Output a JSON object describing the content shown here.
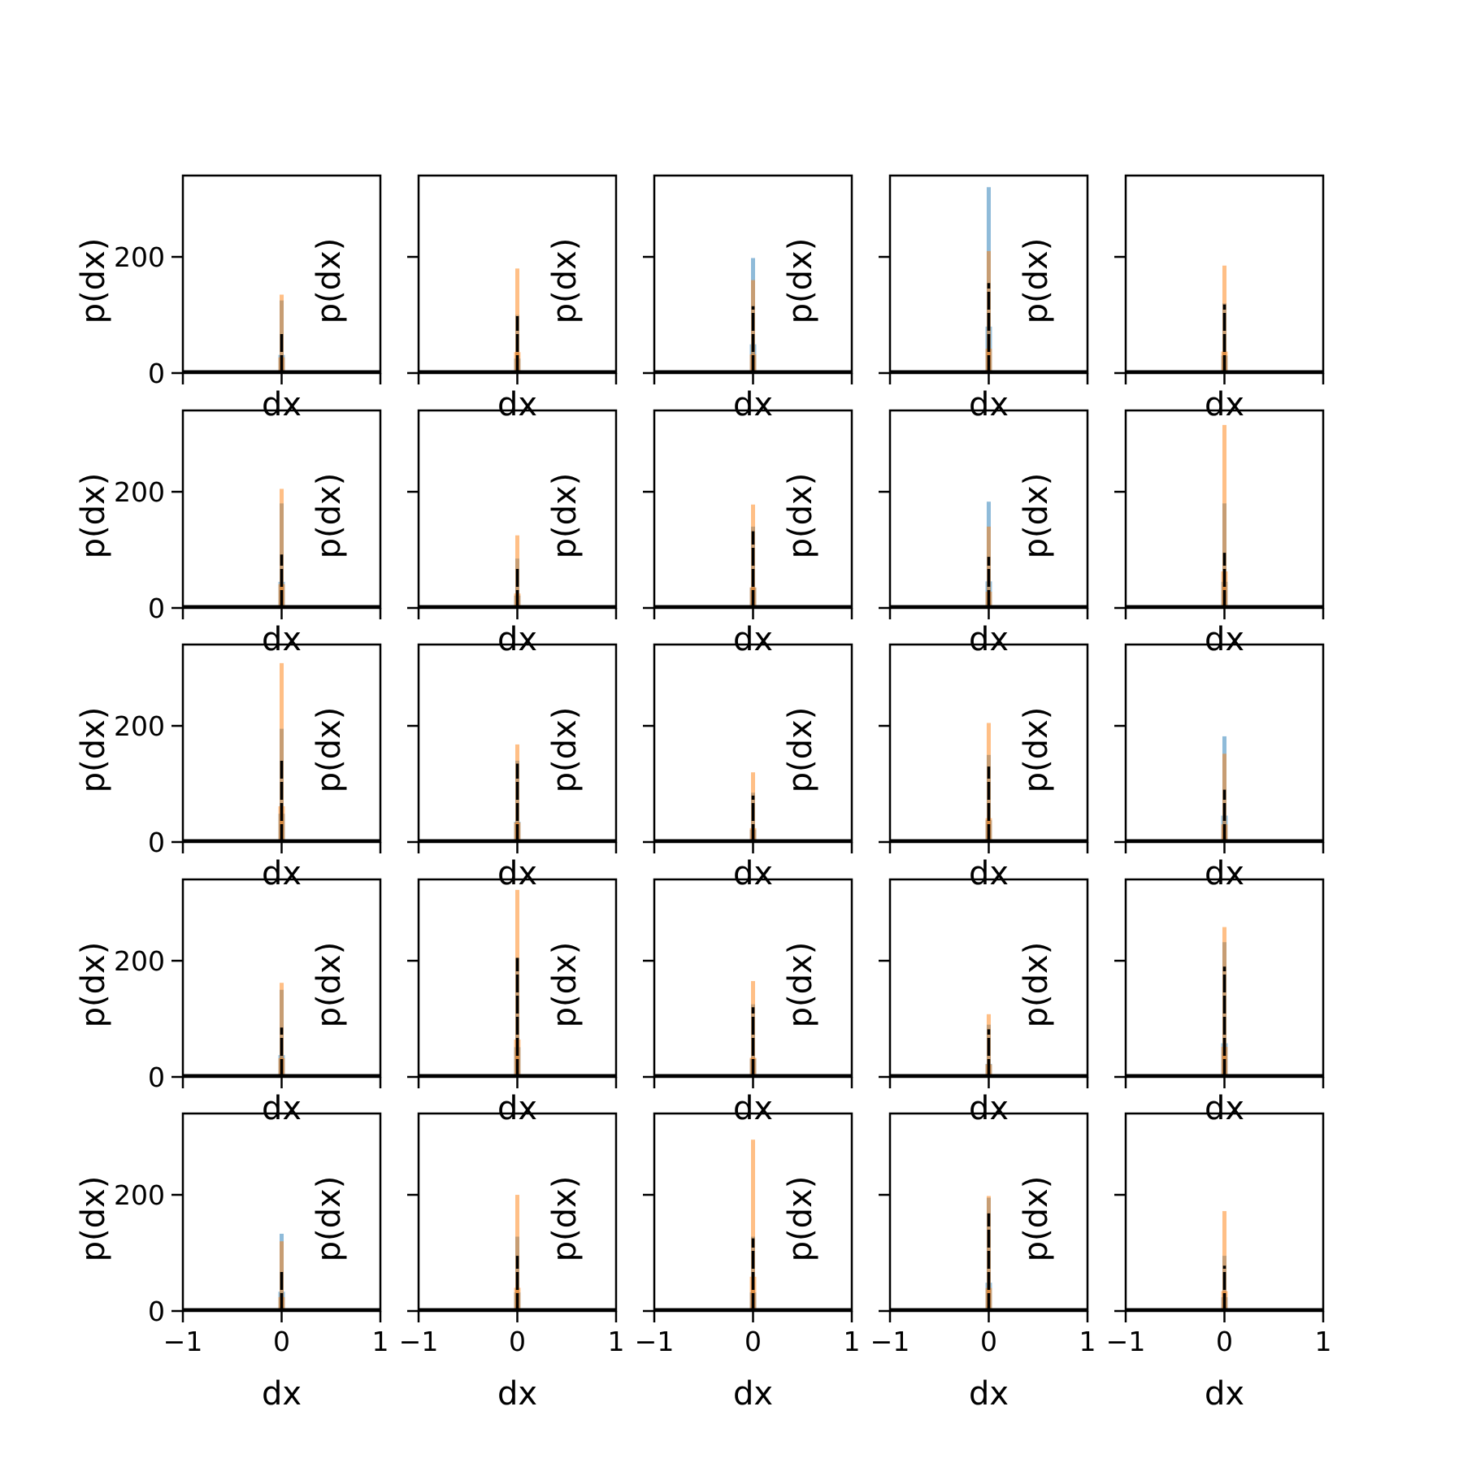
{
  "figure": {
    "rows": 5,
    "cols": 5,
    "xlabel": "dx",
    "ylabel": "p(dx)",
    "xlim": [
      -1,
      1
    ],
    "ylim": [
      0,
      340
    ],
    "xticks": [
      -1,
      0,
      1
    ],
    "xtick_labels": [
      "−1",
      "0",
      "1"
    ],
    "yticks": [
      0,
      200
    ],
    "ytick_labels": [
      "0",
      "200"
    ],
    "colors": {
      "series_a": "#1f77b4",
      "series_b": "#ff7f0e",
      "line": "#000000",
      "axes": "#000000"
    }
  },
  "chart_data": [
    {
      "type": "bar",
      "row": 0,
      "col": 0,
      "blue_peak": 125,
      "orange_peak": 135,
      "black_peak": 70
    },
    {
      "type": "bar",
      "row": 0,
      "col": 1,
      "blue_peak": 100,
      "orange_peak": 180,
      "black_peak": 98
    },
    {
      "type": "bar",
      "row": 0,
      "col": 2,
      "blue_peak": 198,
      "orange_peak": 160,
      "black_peak": 115
    },
    {
      "type": "bar",
      "row": 0,
      "col": 3,
      "blue_peak": 320,
      "orange_peak": 210,
      "black_peak": 155
    },
    {
      "type": "bar",
      "row": 0,
      "col": 4,
      "blue_peak": 120,
      "orange_peak": 185,
      "black_peak": 118
    },
    {
      "type": "bar",
      "row": 1,
      "col": 0,
      "blue_peak": 180,
      "orange_peak": 205,
      "black_peak": 92
    },
    {
      "type": "bar",
      "row": 1,
      "col": 1,
      "blue_peak": 85,
      "orange_peak": 125,
      "black_peak": 72
    },
    {
      "type": "bar",
      "row": 1,
      "col": 2,
      "blue_peak": 140,
      "orange_peak": 178,
      "black_peak": 132
    },
    {
      "type": "bar",
      "row": 1,
      "col": 3,
      "blue_peak": 183,
      "orange_peak": 140,
      "black_peak": 88
    },
    {
      "type": "bar",
      "row": 1,
      "col": 4,
      "blue_peak": 180,
      "orange_peak": 315,
      "black_peak": 95
    },
    {
      "type": "bar",
      "row": 2,
      "col": 0,
      "blue_peak": 195,
      "orange_peak": 308,
      "black_peak": 140
    },
    {
      "type": "bar",
      "row": 2,
      "col": 1,
      "blue_peak": 140,
      "orange_peak": 168,
      "black_peak": 135
    },
    {
      "type": "bar",
      "row": 2,
      "col": 2,
      "blue_peak": 85,
      "orange_peak": 120,
      "black_peak": 80
    },
    {
      "type": "bar",
      "row": 2,
      "col": 3,
      "blue_peak": 150,
      "orange_peak": 205,
      "black_peak": 130
    },
    {
      "type": "bar",
      "row": 2,
      "col": 4,
      "blue_peak": 182,
      "orange_peak": 152,
      "black_peak": 90
    },
    {
      "type": "bar",
      "row": 3,
      "col": 0,
      "blue_peak": 150,
      "orange_peak": 162,
      "black_peak": 85
    },
    {
      "type": "bar",
      "row": 3,
      "col": 1,
      "blue_peak": 205,
      "orange_peak": 322,
      "black_peak": 205
    },
    {
      "type": "bar",
      "row": 3,
      "col": 2,
      "blue_peak": 125,
      "orange_peak": 165,
      "black_peak": 120
    },
    {
      "type": "bar",
      "row": 3,
      "col": 3,
      "blue_peak": 90,
      "orange_peak": 108,
      "black_peak": 82
    },
    {
      "type": "bar",
      "row": 3,
      "col": 4,
      "blue_peak": 232,
      "orange_peak": 258,
      "black_peak": 190
    },
    {
      "type": "bar",
      "row": 4,
      "col": 0,
      "blue_peak": 133,
      "orange_peak": 120,
      "black_peak": 68
    },
    {
      "type": "bar",
      "row": 4,
      "col": 1,
      "blue_peak": 128,
      "orange_peak": 200,
      "black_peak": 95
    },
    {
      "type": "bar",
      "row": 4,
      "col": 2,
      "blue_peak": 128,
      "orange_peak": 295,
      "black_peak": 125
    },
    {
      "type": "bar",
      "row": 4,
      "col": 3,
      "blue_peak": 195,
      "orange_peak": 198,
      "black_peak": 168
    },
    {
      "type": "bar",
      "row": 4,
      "col": 4,
      "blue_peak": 95,
      "orange_peak": 172,
      "black_peak": 78
    }
  ]
}
